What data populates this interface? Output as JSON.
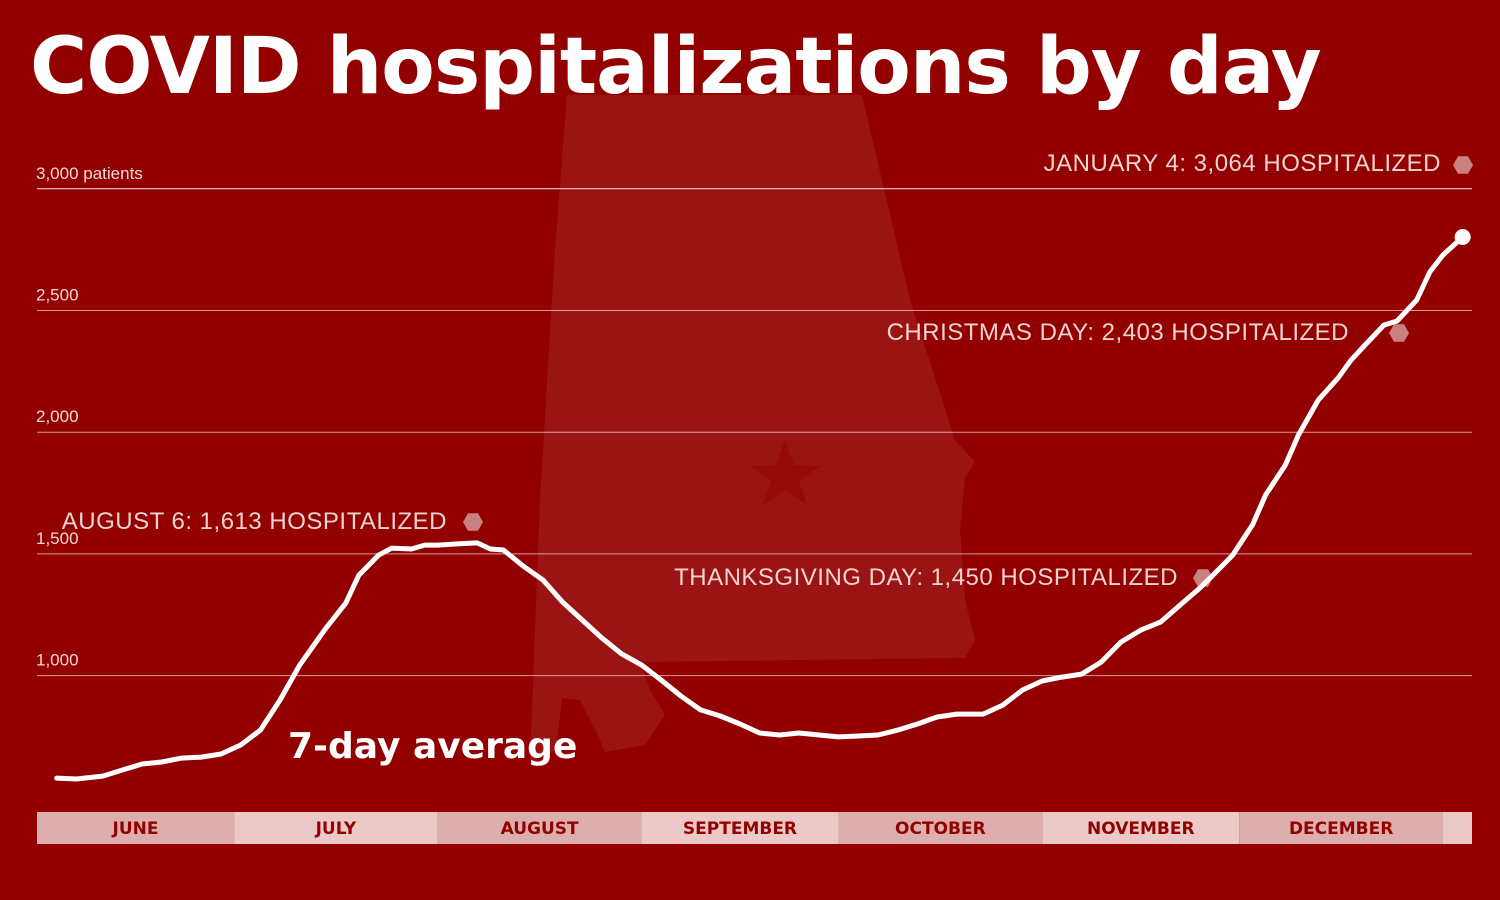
{
  "title": "COVID hospitalizations by day",
  "colors": {
    "background": "#920000",
    "line": "#ffffff",
    "marker": "#c98080",
    "month_a": "#dcaeae",
    "month_b": "#ecc9c9",
    "month_text": "#920000"
  },
  "chart_data": {
    "type": "line",
    "title": "COVID hospitalizations by day",
    "ylabel": "",
    "ylim": [
      0,
      3000
    ],
    "yticks": [
      1000,
      1500,
      2000,
      2500,
      3000
    ],
    "ytick_labels": [
      "1,000",
      "1,500",
      "2,000",
      "2,500",
      "3,000 patients"
    ],
    "grid": true,
    "xlim": [
      "2020-06-01",
      "2021-01-05"
    ],
    "months": [
      "JUNE",
      "JULY",
      "AUGUST",
      "SEPTEMBER",
      "OCTOBER",
      "NOVEMBER",
      "DECEMBER"
    ],
    "series": [
      {
        "name": "7-day average",
        "x": [
          "2020-06-04",
          "2020-06-07",
          "2020-06-11",
          "2020-06-14",
          "2020-06-17",
          "2020-06-20",
          "2020-06-23",
          "2020-06-26",
          "2020-06-29",
          "2020-07-02",
          "2020-07-05",
          "2020-07-08",
          "2020-07-11",
          "2020-07-15",
          "2020-07-18",
          "2020-07-20",
          "2020-07-23",
          "2020-07-25",
          "2020-07-28",
          "2020-07-30",
          "2020-08-01",
          "2020-08-04",
          "2020-08-07",
          "2020-08-09",
          "2020-08-11",
          "2020-08-14",
          "2020-08-17",
          "2020-08-20",
          "2020-08-23",
          "2020-08-26",
          "2020-08-29",
          "2020-09-01",
          "2020-09-04",
          "2020-09-07",
          "2020-09-10",
          "2020-09-13",
          "2020-09-16",
          "2020-09-19",
          "2020-09-22",
          "2020-09-25",
          "2020-09-28",
          "2020-10-01",
          "2020-10-04",
          "2020-10-07",
          "2020-10-10",
          "2020-10-13",
          "2020-10-16",
          "2020-10-19",
          "2020-10-23",
          "2020-10-26",
          "2020-10-29",
          "2020-11-01",
          "2020-11-04",
          "2020-11-07",
          "2020-11-10",
          "2020-11-13",
          "2020-11-16",
          "2020-11-19",
          "2020-11-22",
          "2020-11-25",
          "2020-11-27",
          "2020-11-30",
          "2020-12-03",
          "2020-12-05",
          "2020-12-08",
          "2020-12-10",
          "2020-12-13",
          "2020-12-16",
          "2020-12-18",
          "2020-12-20",
          "2020-12-23",
          "2020-12-25",
          "2020-12-28",
          "2020-12-30",
          "2021-01-01",
          "2021-01-04"
        ],
        "y": [
          579,
          575,
          587,
          612,
          637,
          645,
          661,
          665,
          678,
          715,
          776,
          900,
          1044,
          1196,
          1298,
          1413,
          1495,
          1524,
          1520,
          1536,
          1536,
          1541,
          1545,
          1520,
          1516,
          1450,
          1393,
          1302,
          1228,
          1154,
          1089,
          1044,
          982,
          916,
          859,
          834,
          801,
          764,
          756,
          764,
          756,
          748,
          752,
          756,
          776,
          801,
          830,
          842,
          842,
          879,
          941,
          978,
          994,
          1006,
          1056,
          1138,
          1187,
          1220,
          1290,
          1360,
          1413,
          1495,
          1619,
          1742,
          1865,
          1988,
          2132,
          2222,
          2296,
          2354,
          2440,
          2457,
          2543,
          2658,
          2728,
          2802
        ]
      }
    ],
    "annotations": [
      {
        "date": "2020-08-06",
        "text": "AUGUST 6: 1,613 HOSPITALIZED"
      },
      {
        "date": "2020-11-26",
        "text": "THANKSGIVING DAY: 1,450 HOSPITALIZED"
      },
      {
        "date": "2020-12-25",
        "text": "CHRISTMAS DAY: 2,403 HOSPITALIZED"
      },
      {
        "date": "2021-01-04",
        "text": "JANUARY 4: 3,064 HOSPITALIZED"
      }
    ],
    "series_label": "7-day average"
  }
}
